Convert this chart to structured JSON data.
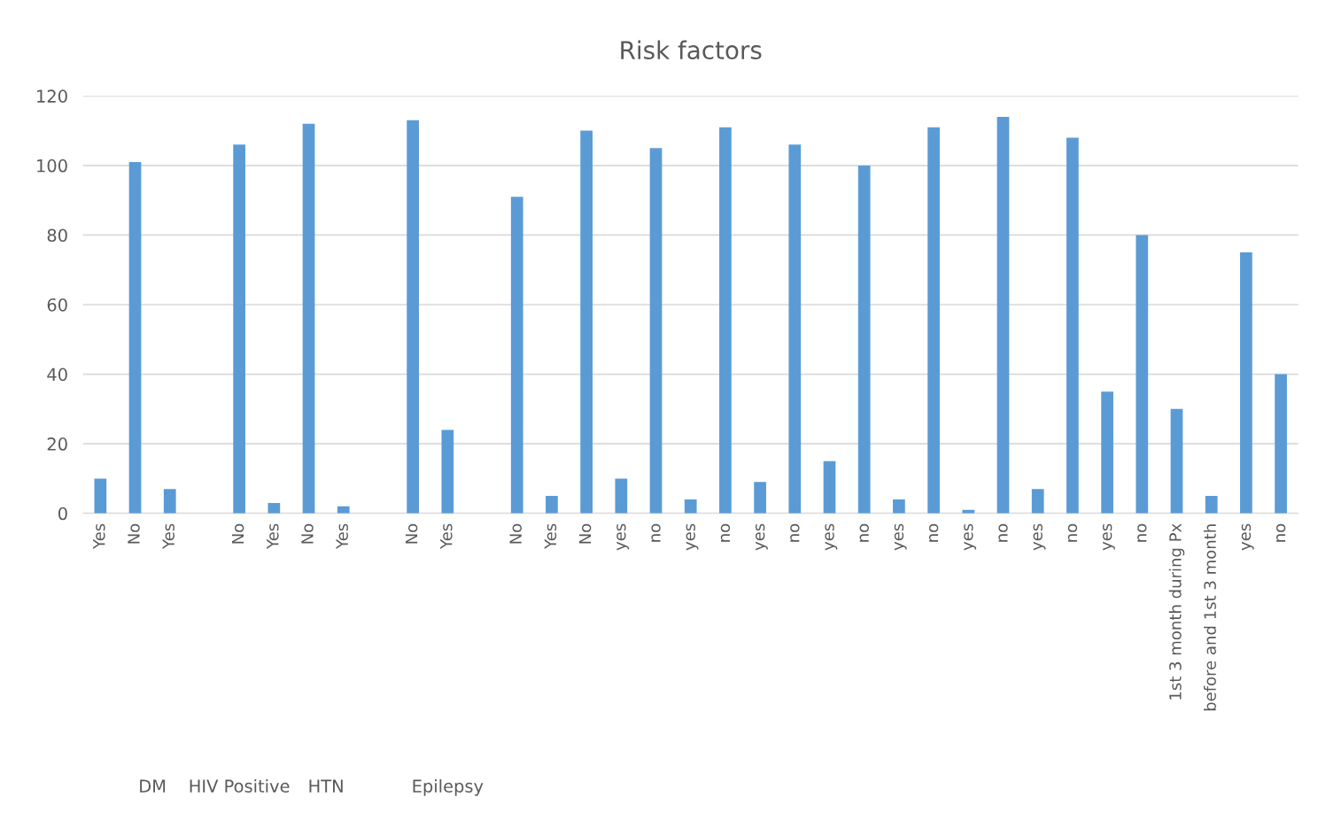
{
  "chart_data": {
    "type": "bar",
    "title": "Risk factors",
    "categories": [
      "Yes",
      "No",
      "Yes",
      null,
      "No",
      "Yes",
      "No",
      "Yes",
      null,
      "No",
      "Yes",
      null,
      "No",
      "Yes",
      "No",
      "yes",
      "no",
      "yes",
      "no",
      "yes",
      "no",
      "yes",
      "no",
      "yes",
      "no",
      "yes",
      "no",
      "yes",
      "no",
      "yes",
      "no",
      "1st 3 month during Px",
      "before and 1st 3 month",
      "yes",
      "no"
    ],
    "values": [
      10,
      101,
      7,
      null,
      106,
      3,
      112,
      2,
      null,
      113,
      24,
      null,
      91,
      5,
      110,
      10,
      105,
      4,
      111,
      9,
      106,
      15,
      100,
      4,
      111,
      1,
      114,
      7,
      108,
      35,
      80,
      30,
      5,
      75,
      40
    ],
    "color": "#5b9bd5",
    "ylim": [
      0,
      120
    ],
    "yticks": [
      0,
      20,
      40,
      60,
      80,
      100,
      120
    ],
    "grid": "y",
    "annotations": [
      "DM",
      "HIV Positive",
      "HTN",
      "Epilepsy"
    ]
  }
}
